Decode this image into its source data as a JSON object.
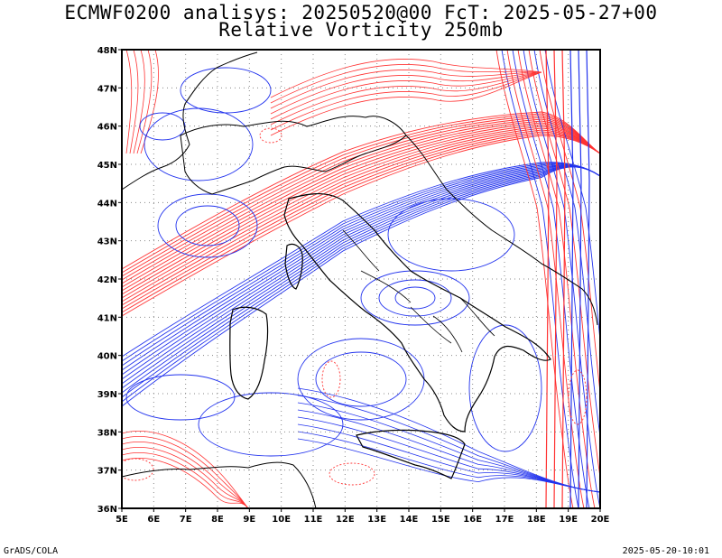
{
  "title": {
    "line1": "ECMWF0200 analisys: 20250520@00 FcT: 2025-05-27+00",
    "line2": "Relative Vorticity 250mb"
  },
  "map": {
    "lon_range": [
      5,
      20
    ],
    "lat_range": [
      36,
      48
    ],
    "lon_labels": [
      "5E",
      "6E",
      "7E",
      "8E",
      "9E",
      "10E",
      "11E",
      "12E",
      "13E",
      "14E",
      "15E",
      "16E",
      "17E",
      "18E",
      "19E",
      "20E"
    ],
    "lat_labels": [
      "36N",
      "37N",
      "38N",
      "39N",
      "40N",
      "41N",
      "42N",
      "43N",
      "44N",
      "45N",
      "46N",
      "47N",
      "48N"
    ],
    "grid": "dotted",
    "colors": {
      "positive_vorticity": "#ff3333",
      "negative_vorticity": "#2233ee",
      "coastline": "#000000",
      "grid": "#888888"
    }
  },
  "footer": {
    "left": "GrADS/COLA",
    "right": "2025-05-20-10:01"
  }
}
